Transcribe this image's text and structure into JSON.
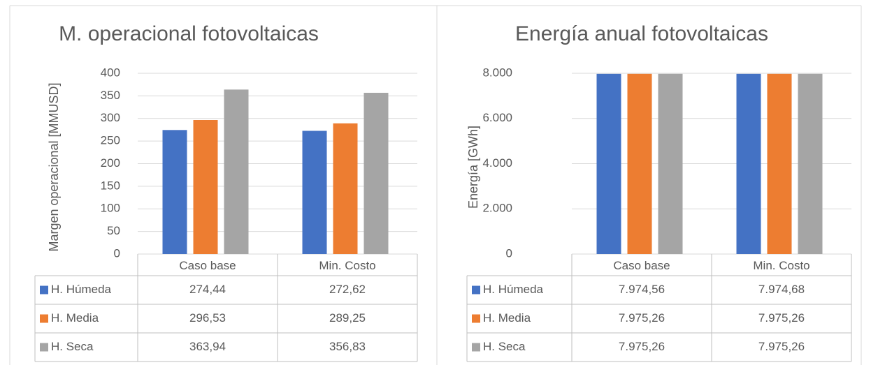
{
  "chart_data": [
    {
      "type": "bar",
      "title": "M. operacional  fotovoltaicas",
      "y_label": "Margen operacional [MMUSD]",
      "categories": [
        "Caso base",
        "Min. Costo"
      ],
      "series": [
        {
          "name": "H. Húmeda",
          "color": "#4472c4",
          "values": [
            274.44,
            272.62
          ],
          "value_labels": [
            "274,44",
            "272,62"
          ]
        },
        {
          "name": "H. Media",
          "color": "#ed7d31",
          "values": [
            296.53,
            289.25
          ],
          "value_labels": [
            "296,53",
            "289,25"
          ]
        },
        {
          "name": "H. Seca",
          "color": "#a5a5a5",
          "values": [
            363.94,
            356.83
          ],
          "value_labels": [
            "363,94",
            "356,83"
          ]
        }
      ],
      "ylim": [
        0,
        400
      ],
      "yticks": [
        0,
        50,
        100,
        150,
        200,
        250,
        300,
        350,
        400
      ],
      "grid": true,
      "data_table": true
    },
    {
      "type": "bar",
      "title": "Energía anual fotovoltaicas",
      "y_label": "Energía [GWh]",
      "categories": [
        "Caso base",
        "Min. Costo"
      ],
      "series": [
        {
          "name": "H. Húmeda",
          "color": "#4472c4",
          "values": [
            7974.56,
            7974.68
          ],
          "value_labels": [
            "7.974,56",
            "7.974,68"
          ]
        },
        {
          "name": "H. Media",
          "color": "#ed7d31",
          "values": [
            7975.26,
            7975.26
          ],
          "value_labels": [
            "7.975,26",
            "7.975,26"
          ]
        },
        {
          "name": "H. Seca",
          "color": "#a5a5a5",
          "values": [
            7975.26,
            7975.26
          ],
          "value_labels": [
            "7.975,26",
            "7.975,26"
          ]
        }
      ],
      "ylim": [
        0,
        8000
      ],
      "yticks": [
        0,
        {
          "value": 2000,
          "label": "2.000"
        },
        {
          "value": 4000,
          "label": "4.000"
        },
        {
          "value": 6000,
          "label": "6.000"
        },
        {
          "value": 8000,
          "label": "8.000"
        }
      ],
      "grid": true,
      "data_table": true
    }
  ]
}
